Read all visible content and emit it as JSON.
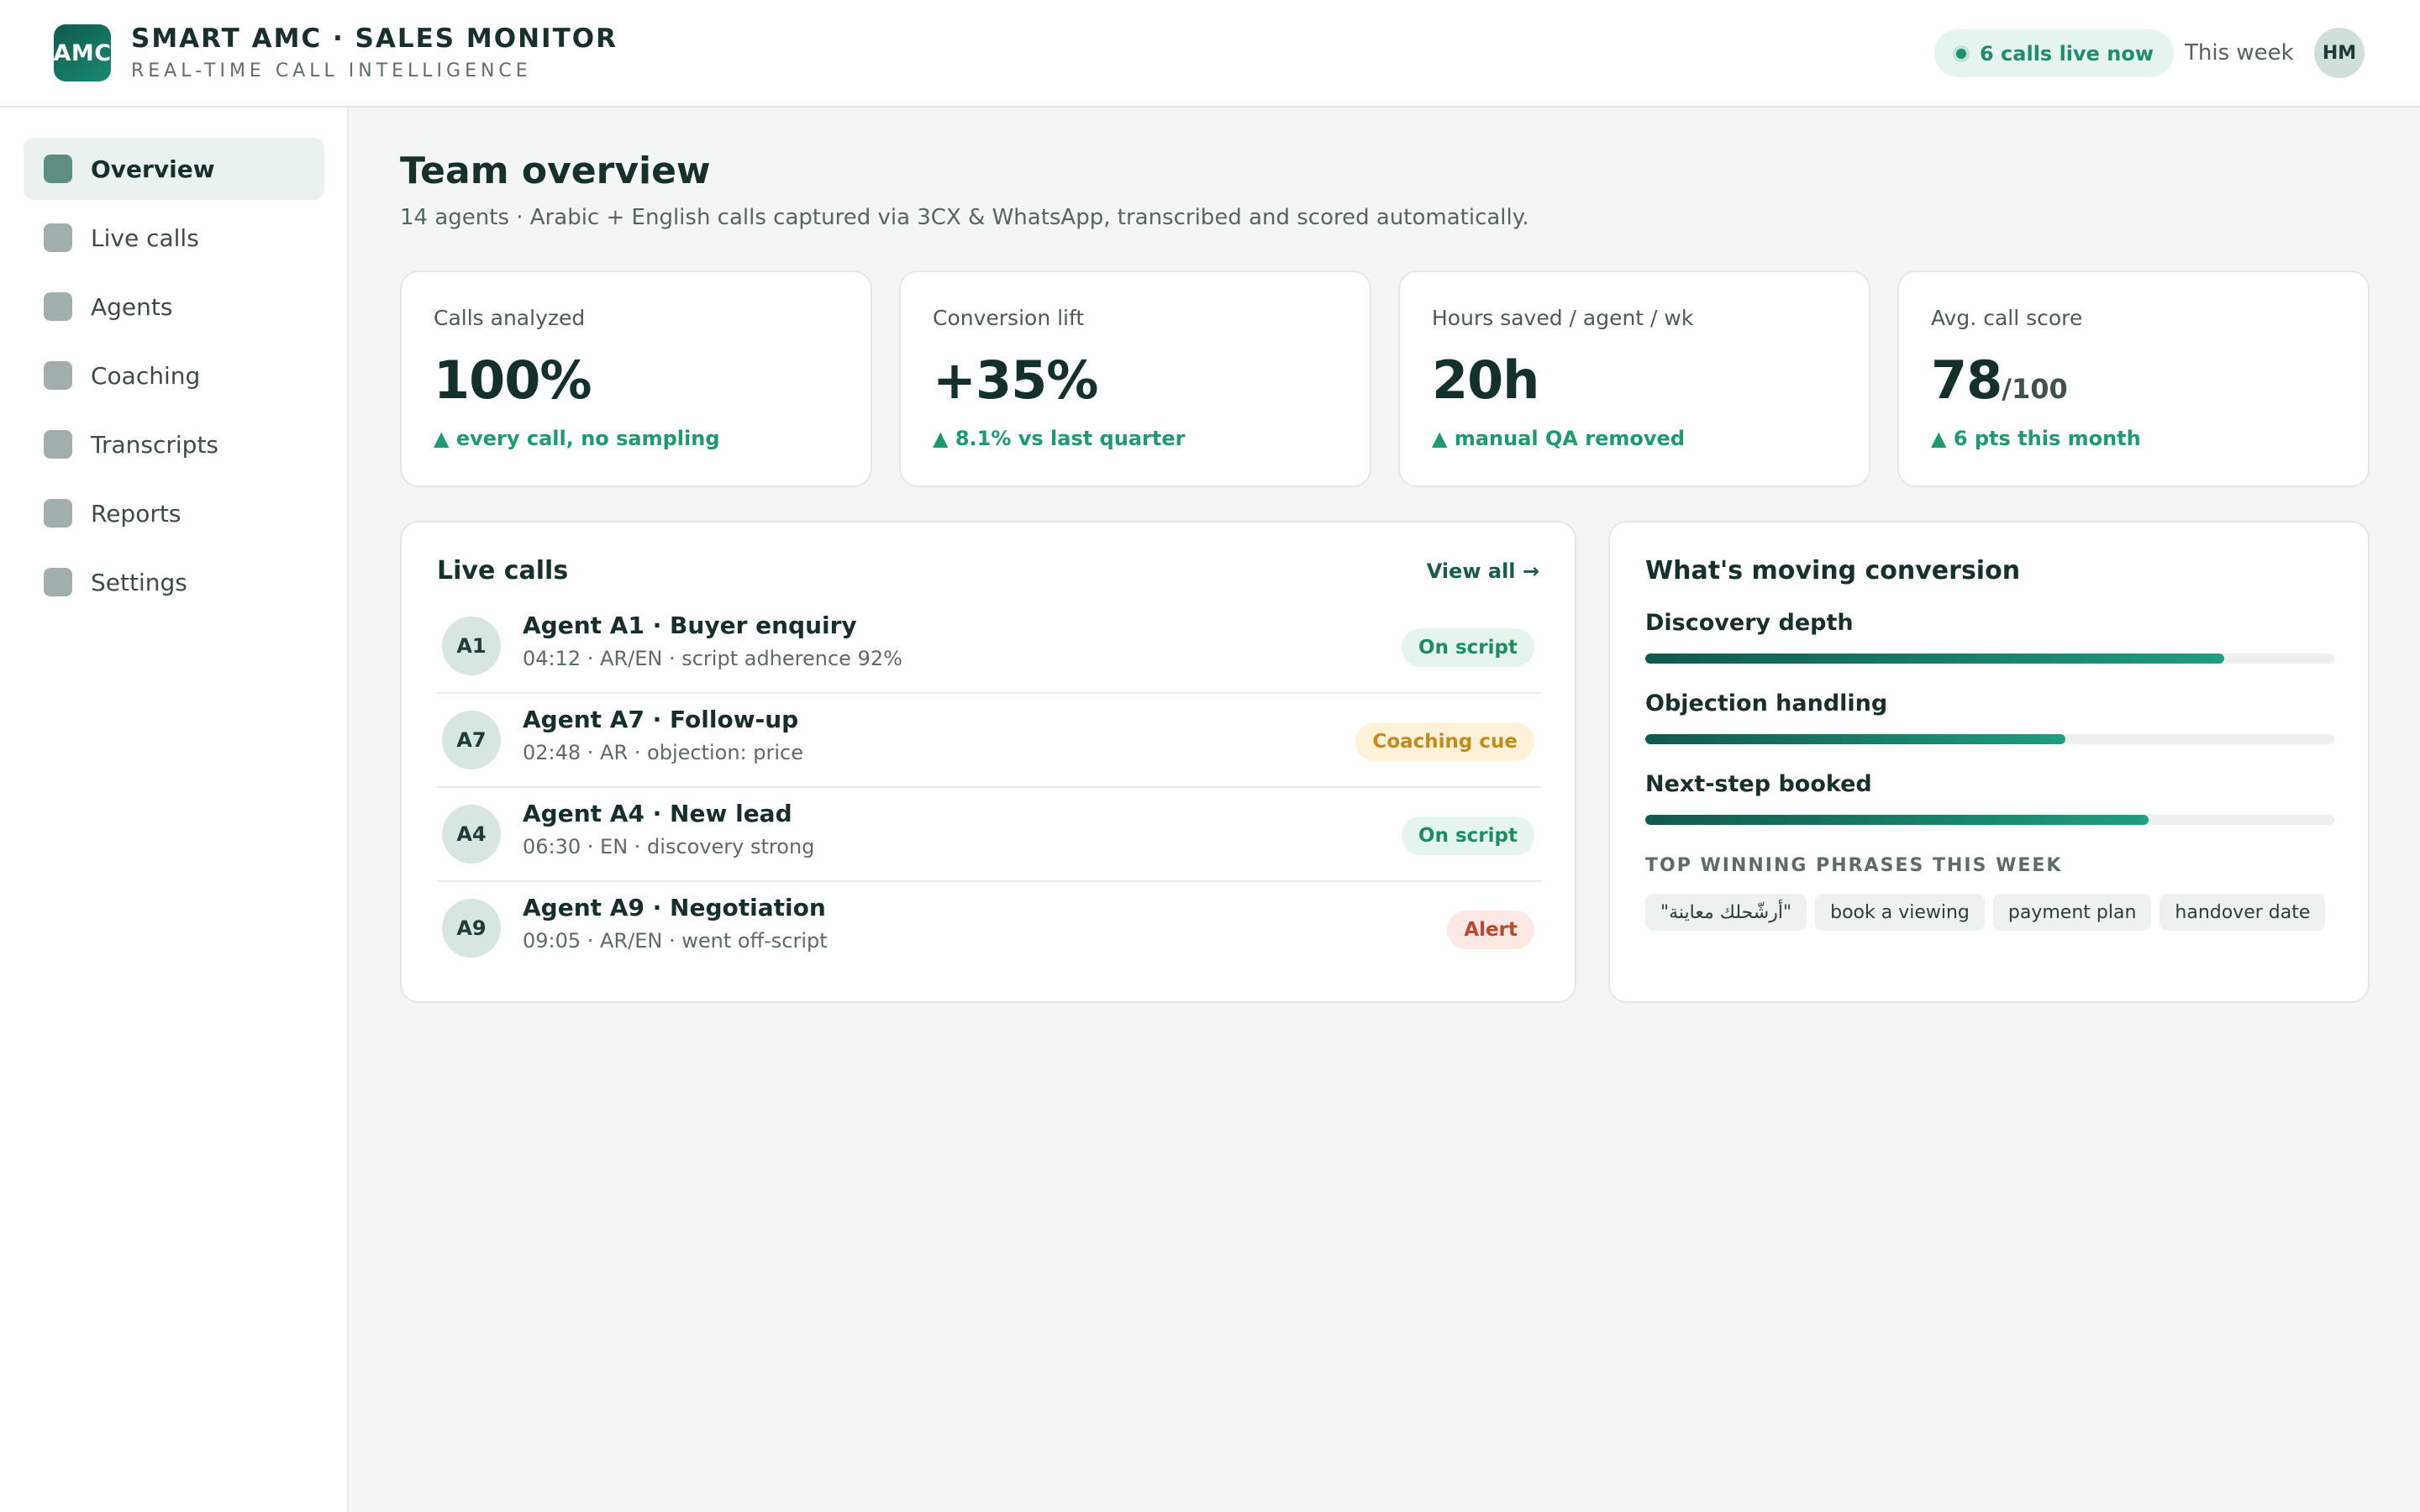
{
  "header": {
    "logo_text": "AMC",
    "title": "SMART AMC · SALES MONITOR",
    "subtitle": "REAL-TIME CALL INTELLIGENCE",
    "live_label": "6 calls live now",
    "period_label": "This week",
    "user_initials": "HM"
  },
  "sidebar": {
    "items": [
      {
        "label": "Overview",
        "icon": "overview-icon",
        "active": true
      },
      {
        "label": "Live calls",
        "icon": "live-calls-icon",
        "active": false
      },
      {
        "label": "Agents",
        "icon": "agents-icon",
        "active": false
      },
      {
        "label": "Coaching",
        "icon": "coaching-icon",
        "active": false
      },
      {
        "label": "Transcripts",
        "icon": "transcripts-icon",
        "active": false
      },
      {
        "label": "Reports",
        "icon": "reports-icon",
        "active": false
      },
      {
        "label": "Settings",
        "icon": "settings-icon",
        "active": false
      }
    ]
  },
  "main": {
    "title": "Team overview",
    "subtitle": "14 agents · Arabic + English calls captured via 3CX & WhatsApp, transcribed and scored automatically."
  },
  "kpis": [
    {
      "label": "Calls analyzed",
      "value": "100%",
      "suffix": "",
      "delta": "▲ every call, no sampling"
    },
    {
      "label": "Conversion lift",
      "value": "+35%",
      "suffix": "",
      "delta": "▲ 8.1% vs last quarter"
    },
    {
      "label": "Hours saved / agent / wk",
      "value": "20h",
      "suffix": "",
      "delta": "▲ manual QA removed"
    },
    {
      "label": "Avg. call score",
      "value": "78",
      "suffix": "/100",
      "delta": "▲ 6 pts this month"
    }
  ],
  "live_calls": {
    "title": "Live calls",
    "view_all": "View all →",
    "calls": [
      {
        "initials": "A1",
        "title": "Agent A1 · Buyer enquiry",
        "meta": "04:12 · AR/EN · script adherence 92%",
        "status": "On script",
        "status_type": "ok"
      },
      {
        "initials": "A7",
        "title": "Agent A7 · Follow-up",
        "meta": "02:48 · AR · objection: price",
        "status": "Coaching cue",
        "status_type": "warn"
      },
      {
        "initials": "A4",
        "title": "Agent A4 · New lead",
        "meta": "06:30 · EN · discovery strong",
        "status": "On script",
        "status_type": "ok"
      },
      {
        "initials": "A9",
        "title": "Agent A9 · Negotiation",
        "meta": "09:05 · AR/EN · went off-script",
        "status": "Alert",
        "status_type": "alert"
      }
    ]
  },
  "conversion": {
    "title": "What's moving conversion",
    "metrics": [
      {
        "label": "Discovery depth",
        "level": 0.84
      },
      {
        "label": "Objection handling",
        "level": 0.61
      },
      {
        "label": "Next-step booked",
        "level": 0.73
      }
    ],
    "phrases_title": "TOP WINNING PHRASES THIS WEEK",
    "phrases": [
      "\"أرشّحلك معاينة\"",
      "book a viewing",
      "payment plan",
      "handover date"
    ]
  },
  "colors": {
    "accent": "#0f5a4c",
    "positive": "#1f9a70",
    "warning": "#c58a1a",
    "alert": "#c0452d"
  }
}
